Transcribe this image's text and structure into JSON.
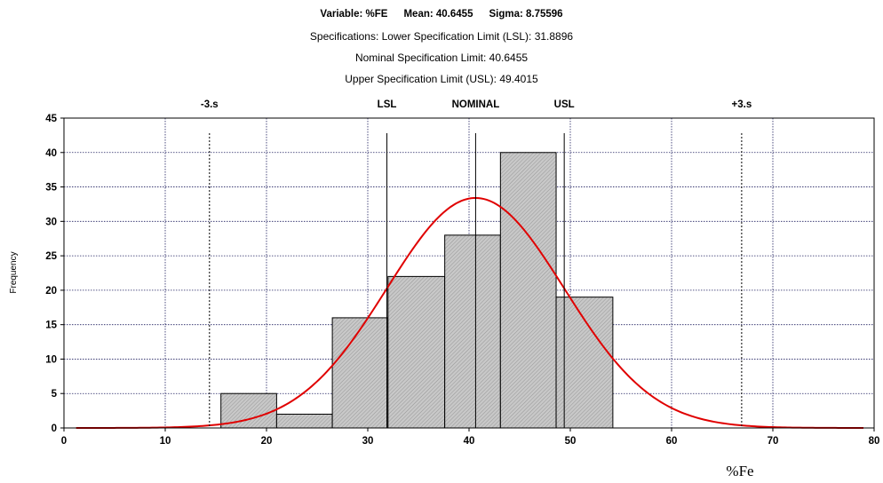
{
  "header": {
    "variable": "Variable: %FE",
    "mean": "Mean: 40.6455",
    "sigma": "Sigma: 8.75596",
    "spec_line": "Specifications: Lower Specification Limit (LSL): 31.8896",
    "nominal_line": "Nominal Specification Limit: 40.6455",
    "usl_line": "Upper Specification Limit (USL): 49.4015"
  },
  "chart_data": {
    "type": "bar",
    "ylabel": "Frequency",
    "xlabel": "%Fe",
    "xlim": [
      0,
      80
    ],
    "ylim": [
      0,
      45
    ],
    "xticks": [
      0,
      10,
      20,
      30,
      40,
      50,
      60,
      70,
      80
    ],
    "yticks": [
      0,
      5,
      10,
      15,
      20,
      25,
      30,
      35,
      40,
      45
    ],
    "grid": true,
    "bins": [
      {
        "start": 15.5,
        "end": 21.0,
        "value": 5
      },
      {
        "start": 21.0,
        "end": 26.5,
        "value": 2
      },
      {
        "start": 26.5,
        "end": 32.0,
        "value": 16
      },
      {
        "start": 32.0,
        "end": 37.6,
        "value": 22
      },
      {
        "start": 37.6,
        "end": 43.1,
        "value": 28
      },
      {
        "start": 43.1,
        "end": 48.6,
        "value": 40
      },
      {
        "start": 48.6,
        "end": 54.2,
        "value": 19
      },
      {
        "start": 54.2,
        "end": 59.7,
        "value": 0
      }
    ],
    "normal_curve": {
      "mean": 40.6455,
      "sigma": 8.75596,
      "peak": 33.4,
      "color": "#e00000"
    },
    "markers": [
      {
        "label": "-3.s",
        "x": 14.37,
        "style": "dotted"
      },
      {
        "label": "LSL",
        "x": 31.89,
        "style": "solid"
      },
      {
        "label": "NOMINAL",
        "x": 40.65,
        "style": "solid"
      },
      {
        "label": "USL",
        "x": 49.4,
        "style": "solid"
      },
      {
        "label": "+3.s",
        "x": 66.92,
        "style": "dotted"
      }
    ],
    "bar_color": "#c8c8c8"
  }
}
